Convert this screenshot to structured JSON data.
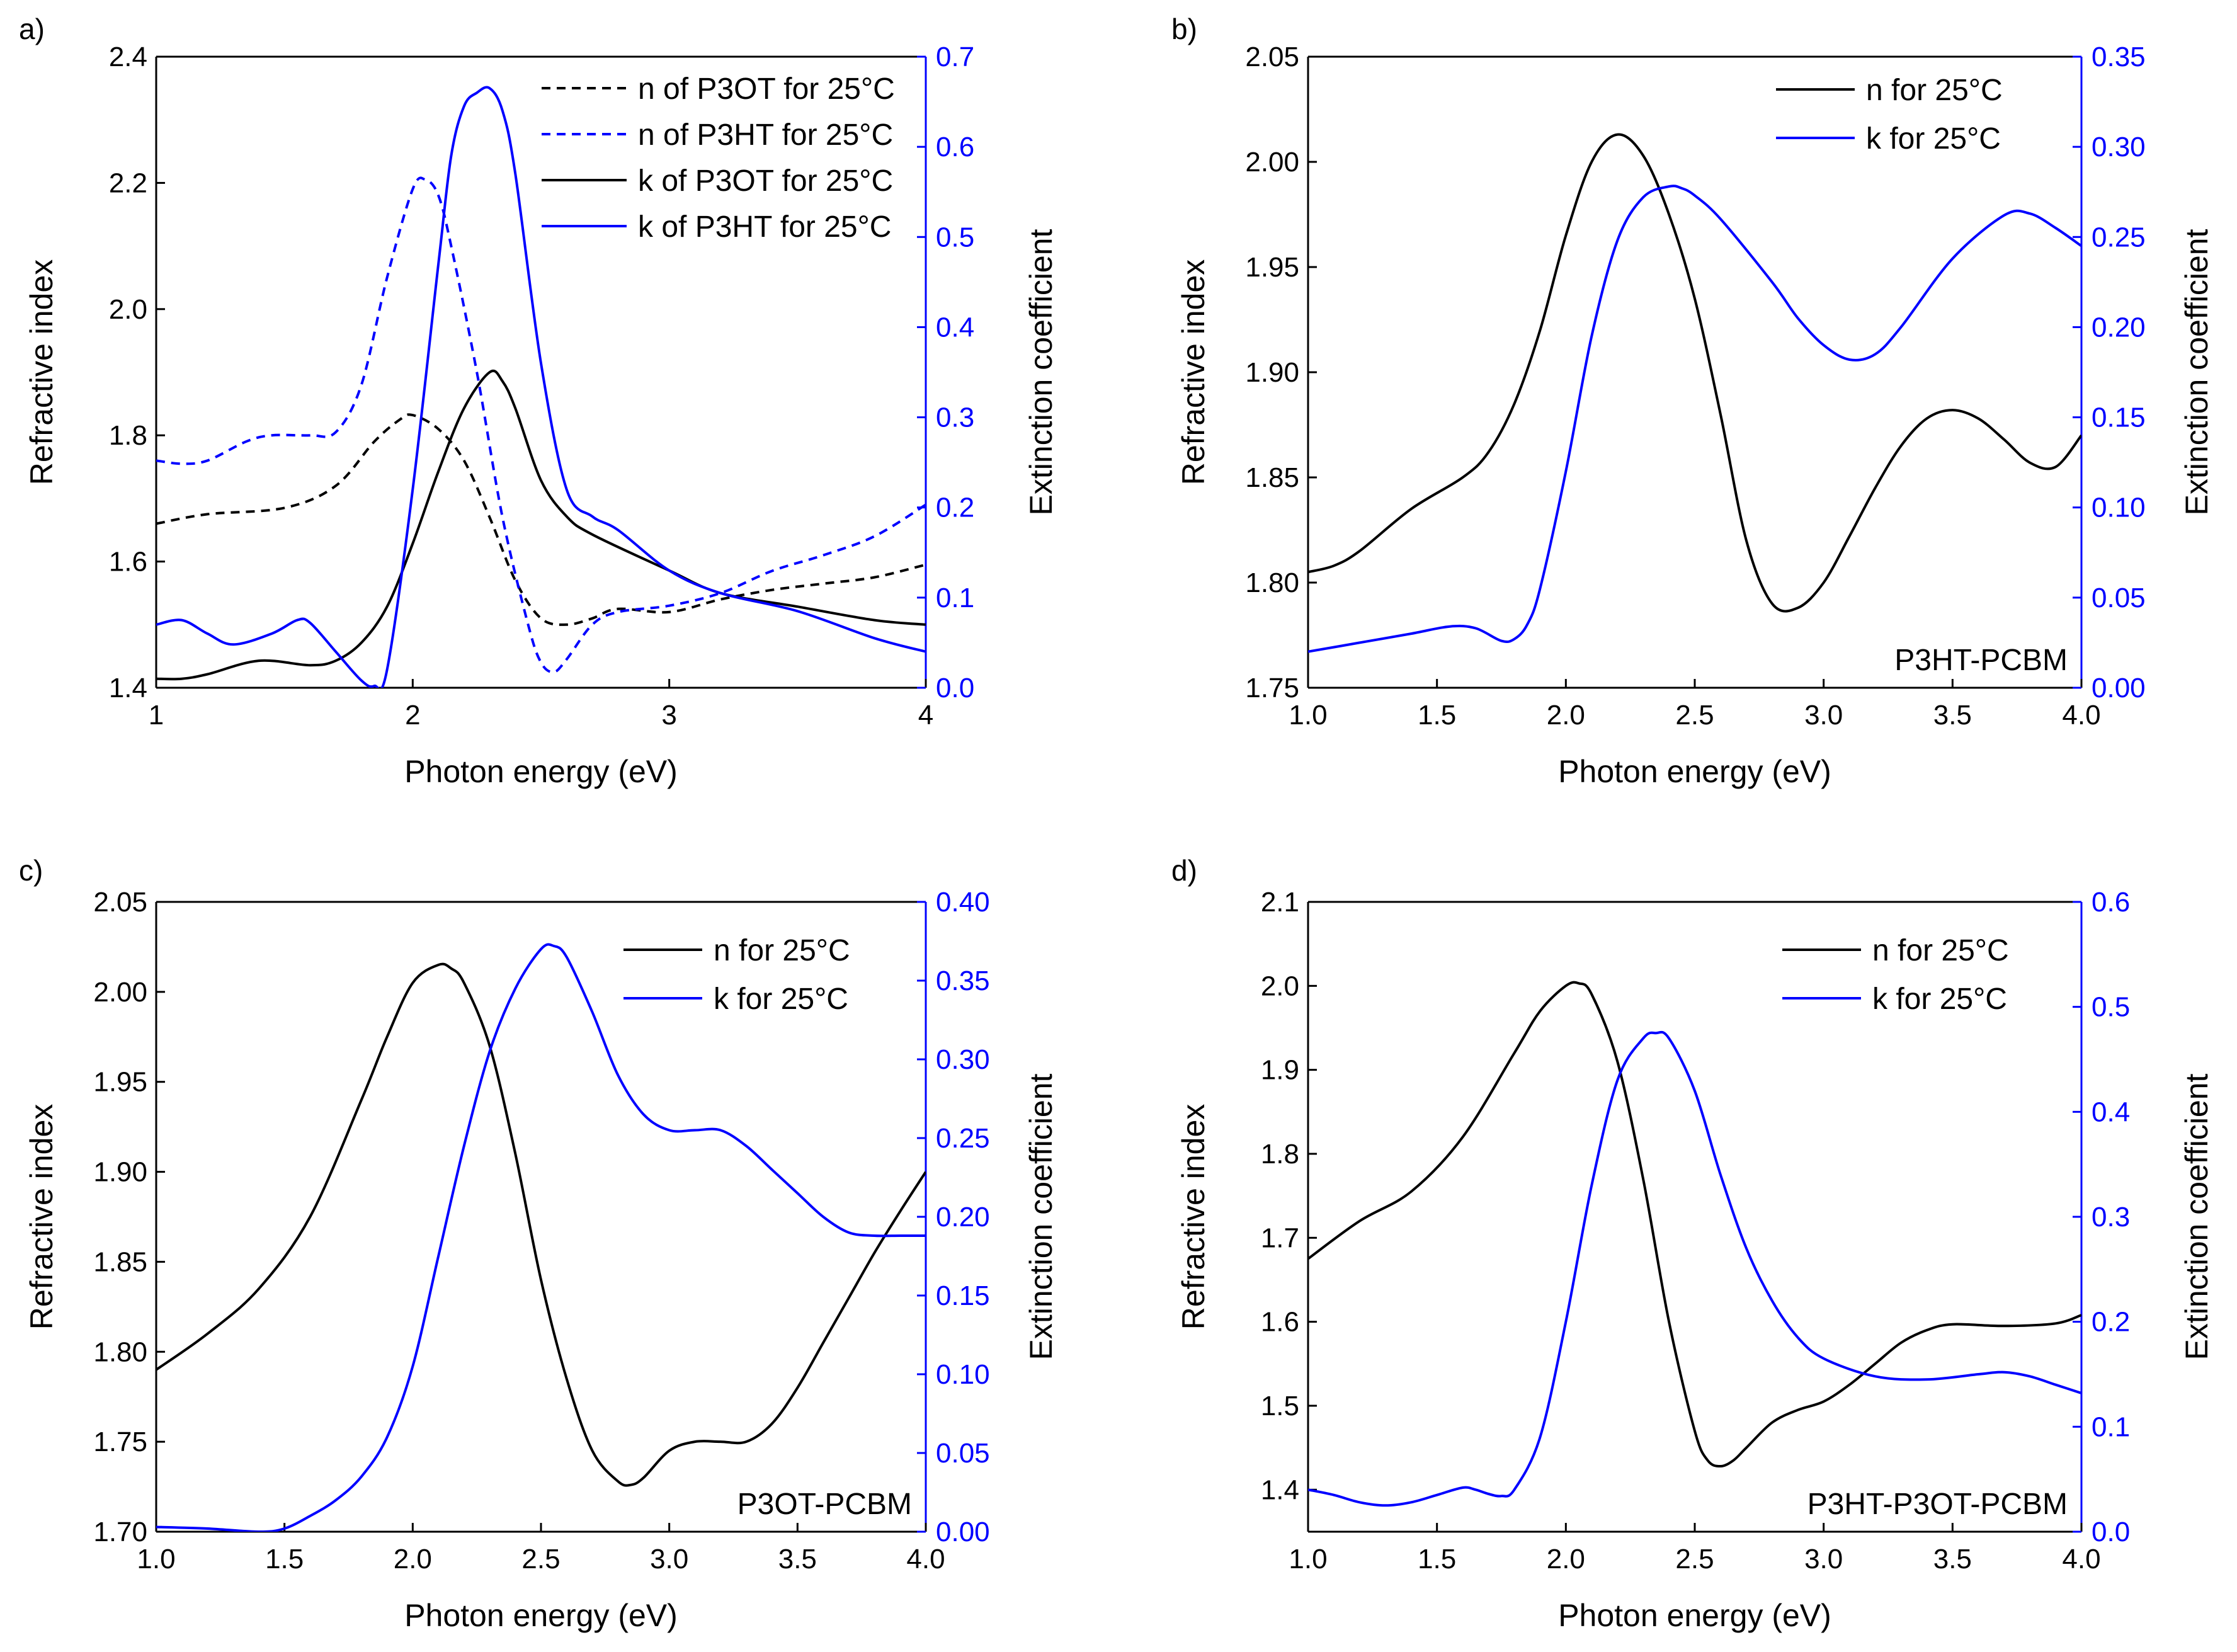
{
  "colors": {
    "n": "#000000",
    "k": "#0000ff",
    "axis_left": "#000000",
    "axis_right": "#0000ff"
  },
  "chart_data": [
    {
      "panel_label": "a)",
      "type": "line",
      "xlabel": "Photon energy (eV)",
      "ylabel": "Refractive index",
      "y2label": "Extinction coefficient",
      "xlim": [
        1,
        4
      ],
      "ylim": [
        1.4,
        2.4
      ],
      "y2lim": [
        0,
        0.7
      ],
      "xticks": [
        1,
        2,
        3,
        4
      ],
      "xtick_labels": [
        "1",
        "2",
        "3",
        "4"
      ],
      "yticks": [
        1.4,
        1.6,
        1.8,
        2.0,
        2.2,
        2.4
      ],
      "ytick_labels": [
        "1.4",
        "1.6",
        "1.8",
        "2.0",
        "2.2",
        "2.4"
      ],
      "y2ticks": [
        0,
        0.1,
        0.2,
        0.3,
        0.4,
        0.5,
        0.6,
        0.7
      ],
      "y2tick_labels": [
        "0.0",
        "0.1",
        "0.2",
        "0.3",
        "0.4",
        "0.5",
        "0.6",
        "0.7"
      ],
      "legend_position": "top-right",
      "sample_label": "",
      "grid": false,
      "series": [
        {
          "name": "n of P3OT for 25°C",
          "axis": "left",
          "color": "#000000",
          "dash": true,
          "x": [
            1.0,
            1.2,
            1.5,
            1.7,
            1.85,
            1.95,
            2.0,
            2.1,
            2.2,
            2.3,
            2.4,
            2.5,
            2.6,
            2.7,
            2.8,
            3.0,
            3.2,
            3.4,
            3.6,
            3.8,
            4.0
          ],
          "y": [
            1.66,
            1.675,
            1.685,
            1.72,
            1.79,
            1.825,
            1.832,
            1.81,
            1.76,
            1.67,
            1.57,
            1.51,
            1.5,
            1.51,
            1.525,
            1.52,
            1.54,
            1.555,
            1.565,
            1.575,
            1.595
          ]
        },
        {
          "name": "n of P3HT for 25°C",
          "axis": "left",
          "color": "#0000ff",
          "dash": true,
          "x": [
            1.0,
            1.1,
            1.2,
            1.35,
            1.45,
            1.6,
            1.7,
            1.8,
            1.9,
            2.0,
            2.05,
            2.1,
            2.15,
            2.25,
            2.35,
            2.45,
            2.5,
            2.55,
            2.6,
            2.7,
            2.8,
            3.0,
            3.2,
            3.4,
            3.6,
            3.8,
            4.0
          ],
          "y": [
            1.76,
            1.755,
            1.76,
            1.79,
            1.8,
            1.8,
            1.805,
            1.88,
            2.05,
            2.19,
            2.205,
            2.18,
            2.1,
            1.9,
            1.67,
            1.5,
            1.44,
            1.425,
            1.445,
            1.5,
            1.52,
            1.53,
            1.55,
            1.585,
            1.61,
            1.64,
            1.69
          ]
        },
        {
          "name": "k of P3OT for 25°C",
          "axis": "right",
          "color": "#000000",
          "dash": false,
          "x": [
            1.0,
            1.1,
            1.2,
            1.4,
            1.6,
            1.7,
            1.8,
            1.9,
            2.0,
            2.1,
            2.2,
            2.3,
            2.35,
            2.4,
            2.5,
            2.6,
            2.7,
            3.0,
            3.2,
            3.5,
            3.8,
            4.0
          ],
          "y": [
            0.01,
            0.01,
            0.015,
            0.03,
            0.025,
            0.03,
            0.05,
            0.09,
            0.16,
            0.24,
            0.31,
            0.35,
            0.34,
            0.31,
            0.23,
            0.19,
            0.17,
            0.13,
            0.105,
            0.09,
            0.075,
            0.07
          ]
        },
        {
          "name": "k of P3HT for 25°C",
          "axis": "right",
          "color": "#0000ff",
          "dash": false,
          "x": [
            1.0,
            1.1,
            1.2,
            1.3,
            1.45,
            1.55,
            1.6,
            1.7,
            1.8,
            1.85,
            1.9,
            2.0,
            2.1,
            2.15,
            2.2,
            2.25,
            2.3,
            2.35,
            2.4,
            2.5,
            2.6,
            2.7,
            2.8,
            3.0,
            3.2,
            3.5,
            3.8,
            4.0
          ],
          "y": [
            0.07,
            0.075,
            0.06,
            0.048,
            0.06,
            0.075,
            0.072,
            0.04,
            0.008,
            0.002,
            0.02,
            0.22,
            0.47,
            0.59,
            0.645,
            0.66,
            0.665,
            0.64,
            0.57,
            0.36,
            0.22,
            0.19,
            0.175,
            0.13,
            0.105,
            0.085,
            0.055,
            0.04
          ]
        }
      ]
    },
    {
      "panel_label": "b)",
      "type": "line",
      "xlabel": "Photon energy (eV)",
      "ylabel": "Refractive index",
      "y2label": "Extinction coefficient",
      "xlim": [
        1,
        4
      ],
      "ylim": [
        1.75,
        2.05
      ],
      "y2lim": [
        0,
        0.35
      ],
      "xticks": [
        1,
        1.5,
        2,
        2.5,
        3,
        3.5,
        4
      ],
      "xtick_labels": [
        "1.0",
        "1.5",
        "2.0",
        "2.5",
        "3.0",
        "3.5",
        "4.0"
      ],
      "yticks": [
        1.75,
        1.8,
        1.85,
        1.9,
        1.95,
        2.0,
        2.05
      ],
      "ytick_labels": [
        "1.75",
        "1.80",
        "1.85",
        "1.90",
        "1.95",
        "2.00",
        "2.05"
      ],
      "y2ticks": [
        0,
        0.05,
        0.1,
        0.15,
        0.2,
        0.25,
        0.3,
        0.35
      ],
      "y2tick_labels": [
        "0.00",
        "0.05",
        "0.10",
        "0.15",
        "0.20",
        "0.25",
        "0.30",
        "0.35"
      ],
      "legend_position": "top-right",
      "sample_label": "P3HT-PCBM",
      "grid": false,
      "series": [
        {
          "name": "n for 25°C",
          "axis": "left",
          "color": "#000000",
          "dash": false,
          "x": [
            1.0,
            1.1,
            1.2,
            1.4,
            1.6,
            1.7,
            1.8,
            1.9,
            2.0,
            2.1,
            2.2,
            2.3,
            2.4,
            2.5,
            2.6,
            2.7,
            2.8,
            2.9,
            3.0,
            3.1,
            3.2,
            3.3,
            3.4,
            3.5,
            3.6,
            3.7,
            3.8,
            3.9,
            4.0
          ],
          "y": [
            1.805,
            1.808,
            1.815,
            1.835,
            1.85,
            1.862,
            1.885,
            1.92,
            1.965,
            2.0,
            2.013,
            2.003,
            1.975,
            1.935,
            1.88,
            1.82,
            1.79,
            1.788,
            1.8,
            1.822,
            1.845,
            1.865,
            1.878,
            1.882,
            1.878,
            1.868,
            1.857,
            1.855,
            1.87
          ]
        },
        {
          "name": "k for 25°C",
          "axis": "right",
          "color": "#0000ff",
          "dash": false,
          "x": [
            1.0,
            1.2,
            1.4,
            1.55,
            1.65,
            1.75,
            1.8,
            1.85,
            1.9,
            2.0,
            2.1,
            2.2,
            2.3,
            2.4,
            2.45,
            2.5,
            2.6,
            2.8,
            2.9,
            3.0,
            3.1,
            3.2,
            3.3,
            3.5,
            3.7,
            3.8,
            3.9,
            4.0
          ],
          "y": [
            0.02,
            0.025,
            0.03,
            0.034,
            0.033,
            0.026,
            0.027,
            0.035,
            0.055,
            0.12,
            0.195,
            0.248,
            0.272,
            0.278,
            0.277,
            0.273,
            0.26,
            0.225,
            0.205,
            0.19,
            0.182,
            0.185,
            0.2,
            0.238,
            0.262,
            0.263,
            0.255,
            0.245
          ]
        }
      ]
    },
    {
      "panel_label": "c)",
      "type": "line",
      "xlabel": "Photon energy (eV)",
      "ylabel": "Refractive index",
      "y2label": "Extinction coefficient",
      "xlim": [
        1,
        4
      ],
      "ylim": [
        1.7,
        2.05
      ],
      "y2lim": [
        0,
        0.4
      ],
      "xticks": [
        1,
        1.5,
        2,
        2.5,
        3,
        3.5,
        4
      ],
      "xtick_labels": [
        "1.0",
        "1.5",
        "2.0",
        "2.5",
        "3.0",
        "3.5",
        "4.0"
      ],
      "yticks": [
        1.7,
        1.75,
        1.8,
        1.85,
        1.9,
        1.95,
        2.0,
        2.05
      ],
      "ytick_labels": [
        "1.70",
        "1.75",
        "1.80",
        "1.85",
        "1.90",
        "1.95",
        "2.00",
        "2.05"
      ],
      "y2ticks": [
        0,
        0.05,
        0.1,
        0.15,
        0.2,
        0.25,
        0.3,
        0.35,
        0.4
      ],
      "y2tick_labels": [
        "0.00",
        "0.05",
        "0.10",
        "0.15",
        "0.20",
        "0.25",
        "0.30",
        "0.35",
        "0.40"
      ],
      "legend_position": "top-right",
      "sample_label": "P3OT-PCBM",
      "grid": false,
      "series": [
        {
          "name": "n for 25°C",
          "axis": "left",
          "color": "#000000",
          "dash": false,
          "x": [
            1.0,
            1.2,
            1.4,
            1.6,
            1.8,
            1.9,
            2.0,
            2.1,
            2.15,
            2.2,
            2.3,
            2.4,
            2.5,
            2.6,
            2.7,
            2.8,
            2.85,
            2.9,
            3.0,
            3.1,
            3.2,
            3.3,
            3.4,
            3.5,
            3.6,
            3.7,
            3.8,
            3.9,
            4.0
          ],
          "y": [
            1.79,
            1.81,
            1.835,
            1.875,
            1.94,
            1.975,
            2.005,
            2.015,
            2.013,
            2.005,
            1.97,
            1.91,
            1.84,
            1.785,
            1.745,
            1.728,
            1.726,
            1.73,
            1.745,
            1.75,
            1.75,
            1.75,
            1.76,
            1.78,
            1.805,
            1.83,
            1.855,
            1.878,
            1.9
          ]
        },
        {
          "name": "k for 25°C",
          "axis": "right",
          "color": "#0000ff",
          "dash": false,
          "x": [
            1.0,
            1.2,
            1.4,
            1.5,
            1.6,
            1.7,
            1.8,
            1.9,
            2.0,
            2.1,
            2.2,
            2.3,
            2.4,
            2.5,
            2.55,
            2.6,
            2.7,
            2.8,
            2.9,
            3.0,
            3.1,
            3.2,
            3.3,
            3.4,
            3.5,
            3.6,
            3.7,
            3.8,
            3.9,
            4.0
          ],
          "y": [
            0.003,
            0.002,
            0.0,
            0.002,
            0.01,
            0.02,
            0.035,
            0.06,
            0.105,
            0.175,
            0.245,
            0.305,
            0.345,
            0.37,
            0.372,
            0.365,
            0.33,
            0.29,
            0.265,
            0.255,
            0.255,
            0.255,
            0.245,
            0.23,
            0.215,
            0.2,
            0.19,
            0.188,
            0.188,
            0.188
          ]
        }
      ]
    },
    {
      "panel_label": "d)",
      "type": "line",
      "xlabel": "Photon energy (eV)",
      "ylabel": "Refractive index",
      "y2label": "Extinction coefficient",
      "xlim": [
        1,
        4
      ],
      "ylim": [
        1.35,
        2.1
      ],
      "y2lim": [
        0,
        0.6
      ],
      "xticks": [
        1,
        1.5,
        2,
        2.5,
        3,
        3.5,
        4
      ],
      "xtick_labels": [
        "1.0",
        "1.5",
        "2.0",
        "2.5",
        "3.0",
        "3.5",
        "4.0"
      ],
      "yticks": [
        1.4,
        1.5,
        1.6,
        1.7,
        1.8,
        1.9,
        2.0,
        2.1
      ],
      "ytick_labels": [
        "1.4",
        "1.5",
        "1.6",
        "1.7",
        "1.8",
        "1.9",
        "2.0",
        "2.1"
      ],
      "y2ticks": [
        0,
        0.1,
        0.2,
        0.3,
        0.4,
        0.5,
        0.6
      ],
      "y2tick_labels": [
        "0.0",
        "0.1",
        "0.2",
        "0.3",
        "0.4",
        "0.5",
        "0.6"
      ],
      "legend_position": "top-right",
      "sample_label": "P3HT-P3OT-PCBM",
      "grid": false,
      "series": [
        {
          "name": "n for 25°C",
          "axis": "left",
          "color": "#000000",
          "dash": false,
          "x": [
            1.0,
            1.2,
            1.4,
            1.6,
            1.8,
            1.9,
            2.0,
            2.05,
            2.1,
            2.2,
            2.3,
            2.4,
            2.5,
            2.55,
            2.6,
            2.65,
            2.7,
            2.8,
            2.9,
            3.0,
            3.1,
            3.2,
            3.3,
            3.4,
            3.5,
            3.7,
            3.9,
            4.0
          ],
          "y": [
            1.675,
            1.72,
            1.755,
            1.82,
            1.92,
            1.97,
            2.0,
            2.003,
            1.99,
            1.91,
            1.77,
            1.6,
            1.47,
            1.435,
            1.428,
            1.435,
            1.45,
            1.48,
            1.495,
            1.505,
            1.525,
            1.55,
            1.575,
            1.59,
            1.597,
            1.595,
            1.598,
            1.608
          ]
        },
        {
          "name": "k for 25°C",
          "axis": "right",
          "color": "#0000ff",
          "dash": false,
          "x": [
            1.0,
            1.1,
            1.2,
            1.3,
            1.4,
            1.5,
            1.6,
            1.65,
            1.7,
            1.75,
            1.8,
            1.9,
            2.0,
            2.1,
            2.2,
            2.3,
            2.35,
            2.4,
            2.5,
            2.6,
            2.7,
            2.8,
            2.9,
            3.0,
            3.2,
            3.4,
            3.6,
            3.7,
            3.8,
            3.9,
            4.0
          ],
          "y": [
            0.04,
            0.035,
            0.028,
            0.025,
            0.028,
            0.035,
            0.042,
            0.04,
            0.036,
            0.034,
            0.04,
            0.09,
            0.2,
            0.33,
            0.43,
            0.47,
            0.475,
            0.47,
            0.42,
            0.34,
            0.27,
            0.22,
            0.185,
            0.165,
            0.148,
            0.145,
            0.15,
            0.152,
            0.148,
            0.14,
            0.132
          ]
        }
      ]
    }
  ]
}
